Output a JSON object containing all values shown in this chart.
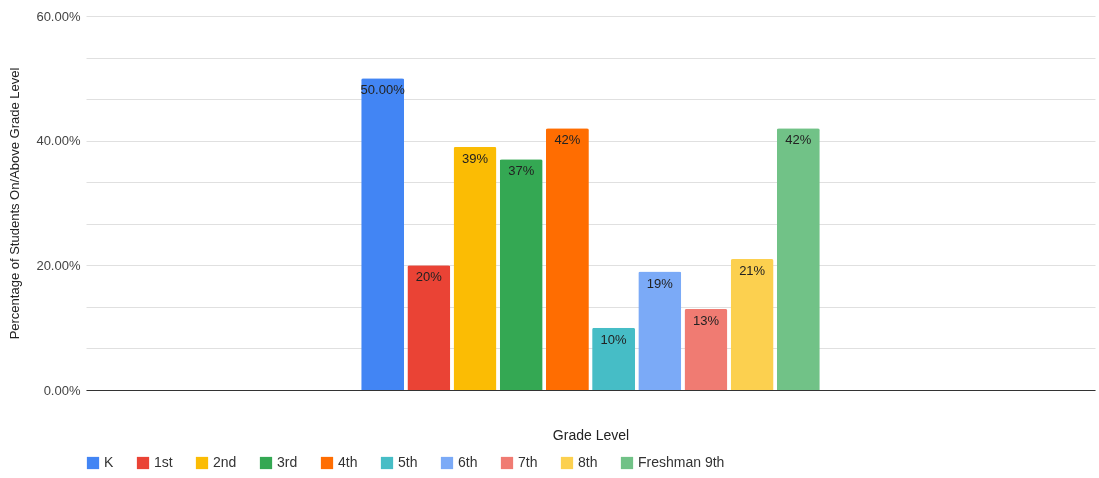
{
  "chart_data": {
    "type": "bar",
    "xlabel": "Grade Level",
    "ylabel": "Percentage of Students On/Above Grade Level",
    "categories": [
      null
    ],
    "series": [
      {
        "name": "K",
        "color": "#4285f4",
        "values": [
          50
        ],
        "value_labels": [
          "50.00%"
        ]
      },
      {
        "name": "1st",
        "color": "#ea4335",
        "values": [
          20
        ],
        "value_labels": [
          "20%"
        ]
      },
      {
        "name": "2nd",
        "color": "#fbbc04",
        "values": [
          39
        ],
        "value_labels": [
          "39%"
        ]
      },
      {
        "name": "3rd",
        "color": "#34a853",
        "values": [
          37
        ],
        "value_labels": [
          "37%"
        ]
      },
      {
        "name": "4th",
        "color": "#ff6d01",
        "values": [
          42
        ],
        "value_labels": [
          "42%"
        ]
      },
      {
        "name": "5th",
        "color": "#46bdc6",
        "values": [
          10
        ],
        "value_labels": [
          "10%"
        ]
      },
      {
        "name": "6th",
        "color": "#7baaf7",
        "values": [
          19
        ],
        "value_labels": [
          "19%"
        ]
      },
      {
        "name": "7th",
        "color": "#f07b72",
        "values": [
          13
        ],
        "value_labels": [
          "13%"
        ]
      },
      {
        "name": "8th",
        "color": "#fcd04f",
        "values": [
          21
        ],
        "value_labels": [
          "21%"
        ]
      },
      {
        "name": "Freshman 9th",
        "color": "#71c287",
        "values": [
          42
        ],
        "value_labels": [
          "42%"
        ]
      }
    ],
    "ylim": [
      0,
      60
    ],
    "yticks": [
      {
        "value": 0,
        "label": "0.00%"
      },
      {
        "value": 6.667,
        "label": null
      },
      {
        "value": 13.333,
        "label": null
      },
      {
        "value": 20,
        "label": "20.00%"
      },
      {
        "value": 26.667,
        "label": null
      },
      {
        "value": 33.333,
        "label": null
      },
      {
        "value": 40,
        "label": "40.00%"
      },
      {
        "value": 46.667,
        "label": null
      },
      {
        "value": 53.333,
        "label": null
      },
      {
        "value": 60,
        "label": "60.00%"
      }
    ],
    "grid": "y",
    "legend": "bottom"
  }
}
